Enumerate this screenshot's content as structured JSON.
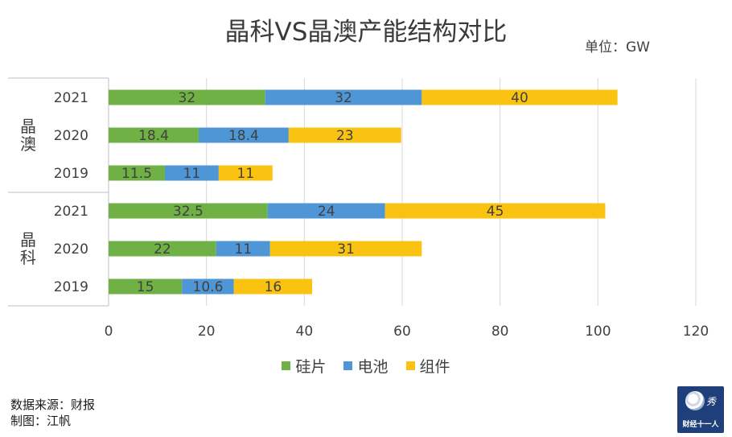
{
  "chart_data": {
    "type": "bar",
    "orientation": "horizontal",
    "stacked": true,
    "title": "晶科VS晶澳产能结构对比",
    "unit_label": "单位：GW",
    "xlim": [
      0,
      120
    ],
    "x_ticks": [
      "0",
      "20",
      "40",
      "60",
      "80",
      "100",
      "120"
    ],
    "grid": "vertical",
    "legend_position": "bottom",
    "groups": [
      {
        "name": "晶澳",
        "rows": [
          {
            "label": "2021",
            "values": [
              32,
              32,
              40
            ]
          },
          {
            "label": "2020",
            "values": [
              18.4,
              18.4,
              23
            ]
          },
          {
            "label": "2019",
            "values": [
              11.5,
              11,
              11
            ]
          }
        ]
      },
      {
        "name": "晶科",
        "rows": [
          {
            "label": "2021",
            "values": [
              32.5,
              24,
              45
            ]
          },
          {
            "label": "2020",
            "values": [
              22,
              11,
              31
            ]
          },
          {
            "label": "2019",
            "values": [
              15,
              10.6,
              16
            ]
          }
        ]
      }
    ],
    "series": [
      {
        "name": "硅片",
        "color": "#6fb144"
      },
      {
        "name": "电池",
        "color": "#4e96d6"
      },
      {
        "name": "组件",
        "color": "#fbc311"
      }
    ]
  },
  "footer": {
    "source": "数据来源：财报",
    "author": "制图：江帆"
  },
  "logo": {
    "text": "财经十一人",
    "mark": "秀"
  }
}
